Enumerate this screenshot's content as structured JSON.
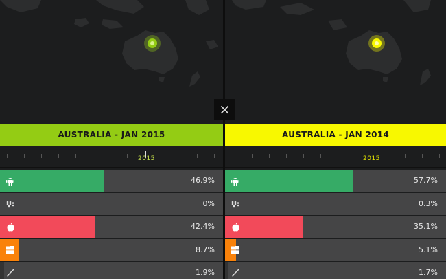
{
  "close_label": "×",
  "colors": {
    "android": "#36ab66",
    "blackberry": "#454546",
    "apple": "#f24a5a",
    "windows": "#f9820a",
    "other": "#454546",
    "row_bg": "#454546",
    "left_accent": "#94cc14",
    "right_accent": "#f8f800"
  },
  "panels": [
    {
      "title": "AUSTRALIA  -  JAN 2015",
      "accent": "#94cc14",
      "timeline_year": "2015",
      "rows": [
        {
          "icon": "android-icon",
          "label": "46.9%",
          "value": 46.9
        },
        {
          "icon": "blackberry-icon",
          "label": "0%",
          "value": 0
        },
        {
          "icon": "apple-icon",
          "label": "42.4%",
          "value": 42.4
        },
        {
          "icon": "windows-icon",
          "label": "8.7%",
          "value": 8.7
        },
        {
          "icon": "other-icon",
          "label": "1.9%",
          "value": 1.9
        }
      ]
    },
    {
      "title": "AUSTRALIA  -  JAN 2014",
      "accent": "#f8f800",
      "timeline_year": "2015",
      "rows": [
        {
          "icon": "android-icon",
          "label": "57.7%",
          "value": 57.7
        },
        {
          "icon": "blackberry-icon",
          "label": "0.3%",
          "value": 0.3
        },
        {
          "icon": "apple-icon",
          "label": "35.1%",
          "value": 35.1
        },
        {
          "icon": "windows-icon",
          "label": "5.1%",
          "value": 5.1
        },
        {
          "icon": "other-icon",
          "label": "1.7%",
          "value": 1.7
        }
      ]
    }
  ]
}
